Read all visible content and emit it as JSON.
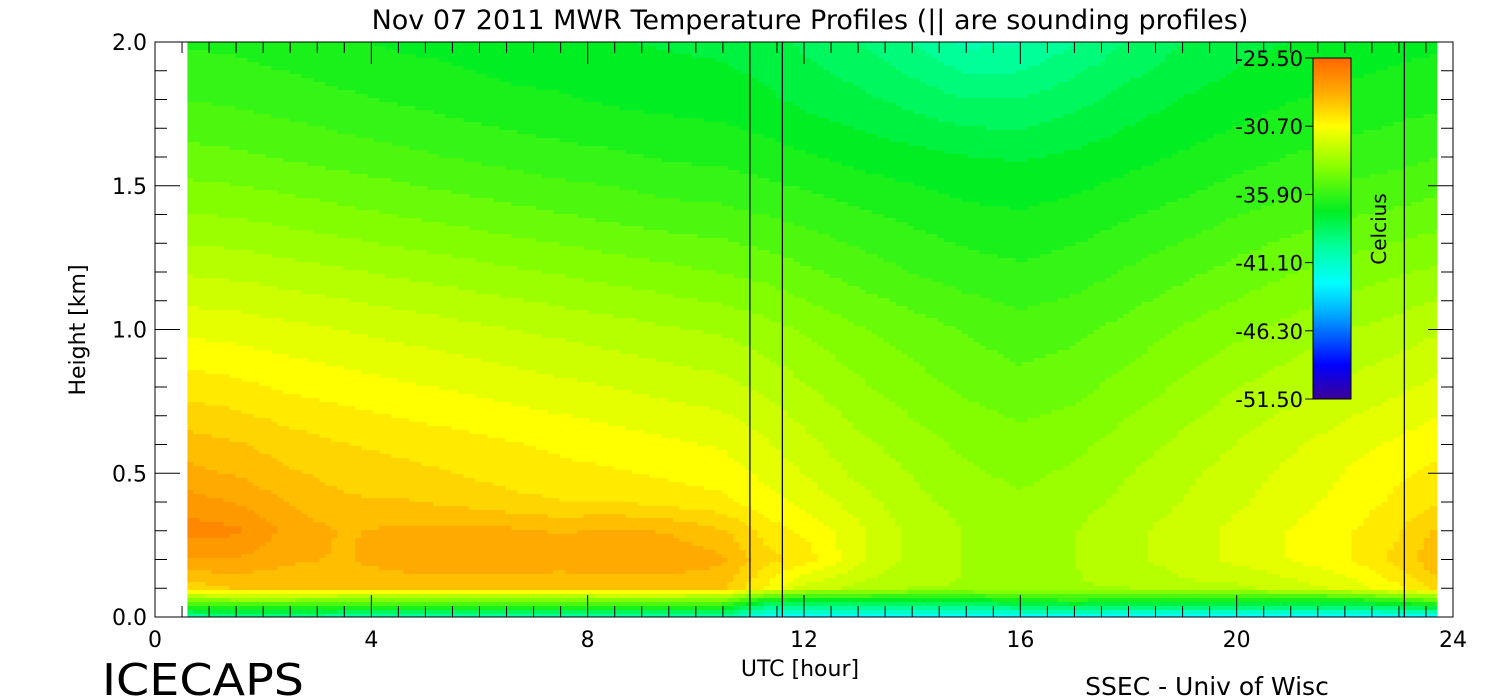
{
  "footer": {
    "logo_text": "ICECAPS",
    "credit": "SSEC - Univ of Wisc"
  },
  "chart_data": {
    "type": "heatmap",
    "title": "Nov 07 2011 MWR Temperature Profiles (|| are sounding profiles)",
    "xlabel": "UTC [hour]",
    "ylabel": "Height [km]",
    "xlim": [
      0,
      24
    ],
    "ylim": [
      0,
      2
    ],
    "x_ticks": [
      "0",
      "4",
      "8",
      "12",
      "16",
      "20",
      "24"
    ],
    "y_ticks": [
      "0.0",
      "0.5",
      "1.0",
      "1.5",
      "2.0"
    ],
    "data_x_range": [
      0.6,
      23.7
    ],
    "sounding_times_hour": [
      11.0,
      11.6,
      23.1
    ],
    "colorbar": {
      "label": "Celcius",
      "min": -51.5,
      "max": -25.5,
      "ticks": [
        "-25.50",
        "-30.70",
        "-35.90",
        "-41.10",
        "-46.30",
        "-51.50"
      ],
      "placement": "top-right inside plot"
    },
    "times_hour": [
      0.6,
      1.5,
      2.5,
      3.5,
      4.5,
      5.5,
      6.5,
      7.5,
      8.5,
      9.5,
      10.5,
      11.3,
      12.0,
      13.0,
      14.0,
      15.0,
      16.0,
      17.0,
      18.0,
      19.0,
      20.0,
      21.0,
      22.0,
      23.0,
      23.7
    ],
    "heights_km": [
      0.0,
      0.03,
      0.06,
      0.1,
      0.2,
      0.3,
      0.4,
      0.5,
      0.6,
      0.8,
      1.0,
      1.2,
      1.4,
      1.6,
      1.8,
      2.0
    ],
    "temperature_C": [
      [
        -40.0,
        -39.5,
        -39.5,
        -40.0,
        -40.0,
        -40.0,
        -40.0,
        -40.0,
        -40.0,
        -40.0,
        -40.0,
        -42.5,
        -43.0,
        -43.0,
        -43.0,
        -43.0,
        -42.5,
        -42.5,
        -43.0,
        -43.0,
        -43.0,
        -43.0,
        -43.0,
        -43.0,
        -43.0
      ],
      [
        -37.0,
        -36.5,
        -36.5,
        -37.0,
        -37.0,
        -37.0,
        -37.0,
        -37.0,
        -37.0,
        -37.0,
        -37.0,
        -40.0,
        -40.0,
        -40.0,
        -40.0,
        -40.0,
        -39.5,
        -39.0,
        -39.5,
        -39.5,
        -39.5,
        -39.5,
        -39.5,
        -39.0,
        -38.0
      ],
      [
        -34.0,
        -33.5,
        -33.5,
        -34.0,
        -34.0,
        -34.0,
        -34.0,
        -34.0,
        -34.0,
        -34.0,
        -34.0,
        -36.5,
        -37.0,
        -37.0,
        -37.0,
        -37.0,
        -36.5,
        -36.0,
        -36.5,
        -36.5,
        -36.5,
        -36.5,
        -36.5,
        -35.5,
        -34.5
      ],
      [
        -29.5,
        -29.0,
        -29.0,
        -29.0,
        -29.0,
        -29.0,
        -29.0,
        -29.0,
        -28.8,
        -28.8,
        -29.0,
        -30.5,
        -32.0,
        -32.5,
        -33.0,
        -33.0,
        -33.0,
        -33.0,
        -33.0,
        -32.5,
        -32.5,
        -32.0,
        -31.5,
        -30.5,
        -29.5
      ],
      [
        -27.8,
        -27.8,
        -28.3,
        -28.5,
        -28.0,
        -27.8,
        -27.8,
        -28.0,
        -28.0,
        -28.0,
        -28.3,
        -29.5,
        -30.0,
        -31.5,
        -32.5,
        -33.0,
        -33.0,
        -33.0,
        -32.5,
        -32.0,
        -31.5,
        -31.0,
        -30.5,
        -29.5,
        -28.5
      ],
      [
        -26.8,
        -27.0,
        -28.0,
        -28.5,
        -28.3,
        -28.2,
        -28.3,
        -28.5,
        -28.3,
        -28.5,
        -29.0,
        -30.0,
        -30.5,
        -31.5,
        -32.5,
        -33.0,
        -33.2,
        -33.0,
        -32.5,
        -32.0,
        -31.5,
        -31.0,
        -30.5,
        -29.8,
        -29.0
      ],
      [
        -27.5,
        -27.8,
        -28.5,
        -29.0,
        -29.0,
        -29.2,
        -29.5,
        -29.7,
        -29.7,
        -30.0,
        -30.2,
        -30.8,
        -31.2,
        -32.0,
        -32.8,
        -33.2,
        -33.5,
        -33.2,
        -32.8,
        -32.3,
        -31.8,
        -31.3,
        -30.8,
        -30.2,
        -29.8
      ],
      [
        -28.2,
        -28.5,
        -29.0,
        -29.3,
        -29.5,
        -29.7,
        -30.0,
        -30.2,
        -30.3,
        -30.5,
        -30.7,
        -31.2,
        -31.7,
        -32.5,
        -33.0,
        -33.5,
        -33.8,
        -33.5,
        -33.0,
        -32.5,
        -32.0,
        -31.5,
        -31.0,
        -30.5,
        -30.2
      ],
      [
        -28.8,
        -29.0,
        -29.4,
        -29.7,
        -29.9,
        -30.1,
        -30.3,
        -30.5,
        -30.7,
        -30.9,
        -31.1,
        -31.6,
        -32.1,
        -32.8,
        -33.3,
        -33.8,
        -34.0,
        -33.8,
        -33.3,
        -32.8,
        -32.3,
        -31.8,
        -31.3,
        -30.9,
        -30.6
      ],
      [
        -30.0,
        -30.2,
        -30.5,
        -30.7,
        -30.9,
        -31.1,
        -31.3,
        -31.5,
        -31.7,
        -31.9,
        -32.1,
        -32.5,
        -32.9,
        -33.5,
        -34.0,
        -34.4,
        -34.7,
        -34.5,
        -34.0,
        -33.5,
        -33.0,
        -32.6,
        -32.2,
        -31.8,
        -31.5
      ],
      [
        -31.2,
        -31.3,
        -31.5,
        -31.7,
        -31.9,
        -32.1,
        -32.3,
        -32.5,
        -32.7,
        -32.9,
        -33.1,
        -33.4,
        -33.7,
        -34.2,
        -34.6,
        -35.0,
        -35.3,
        -35.1,
        -34.7,
        -34.2,
        -33.8,
        -33.4,
        -33.0,
        -32.7,
        -32.4
      ],
      [
        -32.4,
        -32.5,
        -32.7,
        -32.9,
        -33.1,
        -33.3,
        -33.5,
        -33.7,
        -33.9,
        -34.1,
        -34.3,
        -34.5,
        -34.8,
        -35.2,
        -35.6,
        -35.9,
        -36.1,
        -35.9,
        -35.5,
        -35.1,
        -34.7,
        -34.3,
        -34.0,
        -33.7,
        -33.5
      ],
      [
        -33.6,
        -33.7,
        -33.9,
        -34.1,
        -34.3,
        -34.5,
        -34.7,
        -34.9,
        -35.1,
        -35.3,
        -35.4,
        -35.6,
        -35.8,
        -36.1,
        -36.4,
        -36.7,
        -36.8,
        -36.6,
        -36.3,
        -36.0,
        -35.6,
        -35.3,
        -35.0,
        -34.8,
        -34.6
      ],
      [
        -34.7,
        -34.8,
        -35.0,
        -35.2,
        -35.4,
        -35.6,
        -35.8,
        -36.0,
        -36.1,
        -36.3,
        -36.4,
        -36.6,
        -36.8,
        -37.1,
        -37.3,
        -37.5,
        -37.6,
        -37.4,
        -37.1,
        -36.8,
        -36.5,
        -36.2,
        -36.0,
        -35.8,
        -35.6
      ],
      [
        -35.6,
        -35.7,
        -35.9,
        -36.1,
        -36.3,
        -36.5,
        -36.7,
        -36.8,
        -37.0,
        -37.1,
        -37.2,
        -37.4,
        -37.7,
        -38.0,
        -38.4,
        -38.8,
        -38.8,
        -38.4,
        -37.9,
        -37.5,
        -37.2,
        -36.9,
        -36.7,
        -36.5,
        -36.4
      ],
      [
        -36.3,
        -36.4,
        -36.6,
        -36.8,
        -37.0,
        -37.1,
        -37.3,
        -37.4,
        -37.5,
        -37.6,
        -37.7,
        -37.9,
        -38.3,
        -38.8,
        -39.5,
        -40.3,
        -40.2,
        -39.5,
        -38.8,
        -38.2,
        -37.8,
        -37.5,
        -37.3,
        -37.1,
        -37.0
      ]
    ]
  }
}
